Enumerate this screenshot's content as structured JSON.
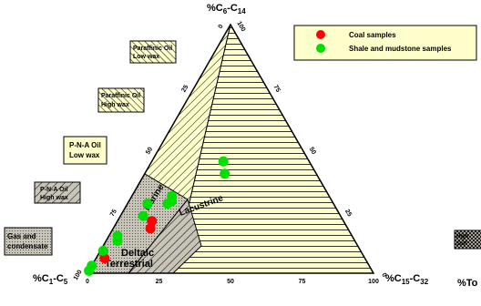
{
  "chart_data": {
    "type": "scatter",
    "subtype": "ternary",
    "axes": {
      "top_vertex": {
        "label_main": "%C",
        "sub1": "6",
        "dash": "-C",
        "sub2": "14"
      },
      "left_vertex": {
        "label_main": "%C",
        "sub1": "1",
        "dash": "-C",
        "sub2": "5"
      },
      "right_vertex": {
        "label_main": "%C",
        "sub1": "15",
        "dash": "-C",
        "sub2": "32"
      },
      "cut_label": "%To"
    },
    "ticks": {
      "bottom": [
        "0",
        "25",
        "50",
        "75",
        "100"
      ],
      "left_side": [
        "0",
        "25",
        "50",
        "75",
        "100"
      ],
      "right_side": [
        "100",
        "75",
        "50",
        "25",
        "0"
      ]
    },
    "regions": {
      "marine": "Marine",
      "lacustrine": "Lacustrine",
      "deltaic": "Deltaic",
      "terrestrial": "Terrestrial"
    },
    "outside_labels": [
      {
        "id": "paraffinic-low-wax",
        "lines": [
          "Paraffinic Oil",
          "Low wax"
        ]
      },
      {
        "id": "paraffinic-high-wax",
        "lines": [
          "Paraffinic Oil",
          "High wax"
        ]
      },
      {
        "id": "pna-low-wax",
        "lines": [
          "P-N-A Oil",
          "Low wax"
        ]
      },
      {
        "id": "pna-high-wax",
        "lines": [
          "P-N-A Oil",
          "High wax"
        ]
      },
      {
        "id": "gas-condensate",
        "lines": [
          "Gas and",
          "condensate"
        ]
      },
      {
        "id": "right-cut",
        "lines": [
          "High",
          "Sulf"
        ]
      }
    ],
    "legend": {
      "placement": "top-right",
      "entries": [
        {
          "label": "Coal samples",
          "color": "#ff0000"
        },
        {
          "label": "Shale and mudstone samples",
          "color": "#00e000"
        }
      ]
    },
    "series": [
      {
        "name": "Coal samples",
        "color": "#ff0000",
        "points": [
          {
            "c15_32": 12,
            "c6_14": 21
          },
          {
            "c15_32": 13,
            "c6_14": 18
          },
          {
            "c15_32": 3,
            "c6_14": 6
          }
        ]
      },
      {
        "name": "Shale and mudstone samples",
        "color": "#00e000",
        "points": [
          {
            "c15_32": 25,
            "c6_14": 45
          },
          {
            "c15_32": 28,
            "c6_14": 40
          },
          {
            "c15_32": 14,
            "c6_14": 31
          },
          {
            "c15_32": 15,
            "c6_14": 29
          },
          {
            "c15_32": 14,
            "c6_14": 28
          },
          {
            "c15_32": 7,
            "c6_14": 28
          },
          {
            "c15_32": 8,
            "c6_14": 23
          },
          {
            "c15_32": 3,
            "c6_14": 15
          },
          {
            "c15_32": 4,
            "c6_14": 13
          },
          {
            "c15_32": 1,
            "c6_14": 9
          },
          {
            "c15_32": 0,
            "c6_14": 3
          },
          {
            "c15_32": 0,
            "c6_14": 1
          }
        ]
      }
    ]
  },
  "colors": {
    "triangle_fill": "#ffffcc",
    "grey_region": "#c8c4b8",
    "legend_fill": "#ffffcc",
    "coal": "#ff0000",
    "shale": "#00e000"
  }
}
